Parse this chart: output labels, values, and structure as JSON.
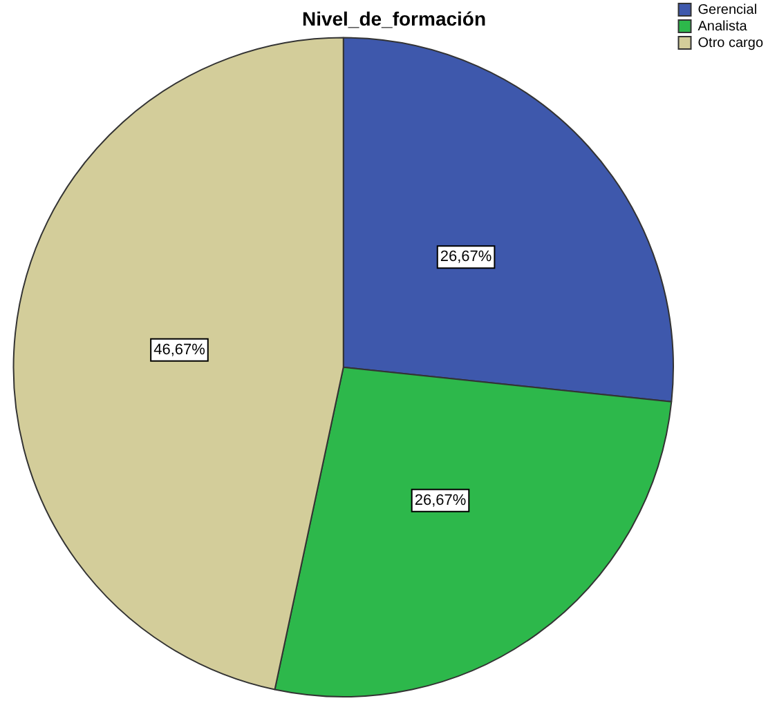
{
  "chart_data": {
    "type": "pie",
    "title": "Nivel_de_formación",
    "categories": [
      "Gerencial",
      "Analista",
      "Otro cargo"
    ],
    "values": [
      26.67,
      26.67,
      46.67
    ],
    "colors": [
      "#3e58ac",
      "#2db84b",
      "#d3cd9a"
    ],
    "value_labels": [
      "26,67%",
      "26,67%",
      "46,67%"
    ],
    "legend": "top right"
  }
}
